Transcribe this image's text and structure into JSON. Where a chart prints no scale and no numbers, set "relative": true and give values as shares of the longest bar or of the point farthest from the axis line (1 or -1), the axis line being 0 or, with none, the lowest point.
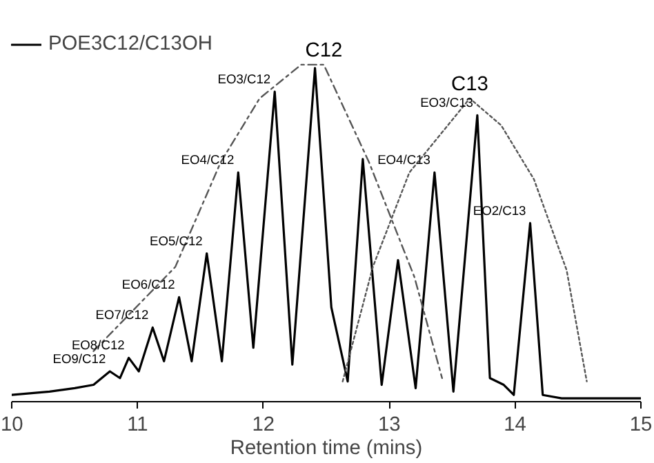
{
  "chart_data": {
    "type": "line",
    "relative": true,
    "xlabel": "Retention time (mins)",
    "xlim": [
      10,
      15
    ],
    "xticks": [
      10,
      11,
      12,
      13,
      14,
      15
    ],
    "tick_labels": "x",
    "grid": false,
    "legend": "top left",
    "marker": "none",
    "series": [
      {
        "name": "POE3C12/C13OH",
        "color": "#000000",
        "line_style": "solid",
        "x": [
          10.0,
          10.3,
          10.5,
          10.65,
          10.78,
          10.86,
          10.93,
          11.01,
          11.12,
          11.21,
          11.33,
          11.43,
          11.55,
          11.67,
          11.8,
          11.92,
          12.09,
          12.23,
          12.41,
          12.54,
          12.67,
          12.79,
          12.94,
          13.07,
          13.21,
          13.36,
          13.51,
          13.7,
          13.8,
          13.91,
          13.99,
          14.12,
          14.22,
          14.37,
          15.0
        ],
        "values": [
          0.02,
          0.03,
          0.04,
          0.05,
          0.09,
          0.07,
          0.13,
          0.09,
          0.22,
          0.12,
          0.31,
          0.12,
          0.44,
          0.12,
          0.68,
          0.16,
          0.92,
          0.11,
          0.99,
          0.28,
          0.06,
          0.72,
          0.05,
          0.42,
          0.04,
          0.68,
          0.03,
          0.85,
          0.07,
          0.05,
          0.02,
          0.53,
          0.02,
          0.01,
          0.01
        ]
      },
      {
        "color": "#555555",
        "line_style": "dashed",
        "x": [
          10.65,
          11.3,
          11.66,
          11.97,
          12.3,
          12.48,
          12.84,
          13.2,
          13.42
        ],
        "values": [
          0.15,
          0.4,
          0.71,
          0.9,
          1.0,
          1.0,
          0.71,
          0.37,
          0.07
        ]
      },
      {
        "color": "#555555",
        "line_style": "dotted",
        "x": [
          12.63,
          12.87,
          13.16,
          13.64,
          13.89,
          14.15,
          14.41,
          14.57
        ],
        "values": [
          0.06,
          0.4,
          0.68,
          0.9,
          0.82,
          0.66,
          0.39,
          0.06
        ]
      }
    ],
    "annotations": [
      {
        "text": "EO9/C12",
        "x": 10.78,
        "y": 0.09
      },
      {
        "text": "EO8/C12",
        "x": 10.93,
        "y": 0.13
      },
      {
        "text": "EO7/C12",
        "x": 11.12,
        "y": 0.22
      },
      {
        "text": "EO6/C12",
        "x": 11.33,
        "y": 0.31
      },
      {
        "text": "EO5/C12",
        "x": 11.55,
        "y": 0.44
      },
      {
        "text": "EO4/C12",
        "x": 11.8,
        "y": 0.68
      },
      {
        "text": "EO3/C12",
        "x": 12.09,
        "y": 0.92
      },
      {
        "text": "C12",
        "x": 12.48,
        "y": 1.0
      },
      {
        "text": "C13",
        "x": 13.64,
        "y": 0.9
      },
      {
        "text": "EO4/C13",
        "x": 13.36,
        "y": 0.68
      },
      {
        "text": "EO3/C13",
        "x": 13.7,
        "y": 0.85
      },
      {
        "text": "EO2/C13",
        "x": 14.12,
        "y": 0.53
      }
    ]
  }
}
